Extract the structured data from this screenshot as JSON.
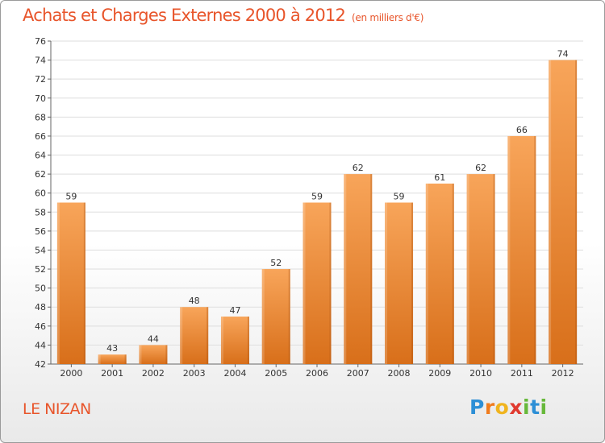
{
  "header": {
    "title": "Achats et Charges Externes 2000 à 2012",
    "unit": "(en milliers d'€)"
  },
  "footer": {
    "commune": "LE NIZAN",
    "logo_letters": [
      "P",
      "r",
      "o",
      "x",
      "i",
      "t",
      "i"
    ],
    "logo_colors": [
      "#2d8fd6",
      "#f07c1e",
      "#f0b41e",
      "#e03a2f",
      "#67b83a",
      "#2d8fd6",
      "#67b83a"
    ]
  },
  "colors": {
    "bar_top": "#f8a55a",
    "bar_bottom": "#d86f1a",
    "title": "#e8552b",
    "grid": "#dddddd"
  },
  "chart_data": {
    "type": "bar",
    "title": "Achats et Charges Externes 2000 à 2012",
    "subtitle": "(en milliers d'€)",
    "categories": [
      "2000",
      "2001",
      "2002",
      "2003",
      "2004",
      "2005",
      "2006",
      "2007",
      "2008",
      "2009",
      "2010",
      "2011",
      "2012"
    ],
    "values": [
      59,
      43,
      44,
      48,
      47,
      52,
      59,
      62,
      59,
      61,
      62,
      66,
      74
    ],
    "ylim": [
      42,
      76
    ],
    "yticks": [
      42,
      44,
      46,
      48,
      50,
      52,
      54,
      56,
      58,
      60,
      62,
      64,
      66,
      68,
      70,
      72,
      74,
      76
    ],
    "grid": true
  }
}
